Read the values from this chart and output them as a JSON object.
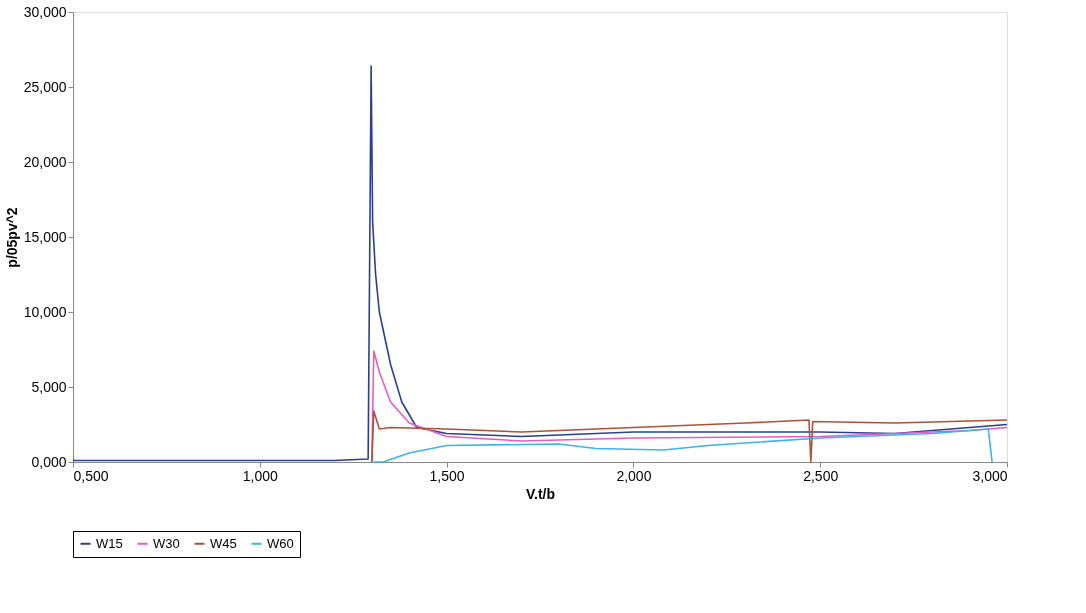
{
  "chart_data": {
    "type": "line",
    "xlabel": "V.t/b",
    "ylabel": "p/05pv^2",
    "xlim": [
      0.5,
      3.0
    ],
    "ylim": [
      0,
      30
    ],
    "xticks": [
      {
        "value": 0.5,
        "label": "0,500"
      },
      {
        "value": 1.0,
        "label": "1,000"
      },
      {
        "value": 1.5,
        "label": "1,500"
      },
      {
        "value": 2.0,
        "label": "2,000"
      },
      {
        "value": 2.5,
        "label": "2,500"
      },
      {
        "value": 3.0,
        "label": "3,000"
      }
    ],
    "yticks": [
      {
        "value": 0,
        "label": "0,000"
      },
      {
        "value": 5,
        "label": "5,000"
      },
      {
        "value": 10,
        "label": "10,000"
      },
      {
        "value": 15,
        "label": "15,000"
      },
      {
        "value": 20,
        "label": "20,000"
      },
      {
        "value": 25,
        "label": "25,000"
      },
      {
        "value": 30,
        "label": "30,000"
      }
    ],
    "grid": false,
    "legend": "bottom",
    "marker": "none",
    "line_style": "solid",
    "series": [
      {
        "name": "W15",
        "color": "#2a3f8f",
        "x": [
          0.5,
          0.8,
          1.0,
          1.2,
          1.29,
          1.298,
          1.302,
          1.31,
          1.32,
          1.35,
          1.38,
          1.42,
          1.5,
          1.7,
          2.0,
          2.3,
          2.5,
          2.7,
          2.9,
          3.0
        ],
        "values": [
          0.1,
          0.1,
          0.1,
          0.1,
          0.2,
          26.4,
          16,
          12.5,
          10,
          6.5,
          4,
          2.3,
          1.9,
          1.7,
          2.0,
          2.0,
          2.0,
          1.9,
          2.3,
          2.5
        ]
      },
      {
        "name": "W30",
        "color": "#e05fc0",
        "x": [
          1.3,
          1.305,
          1.32,
          1.35,
          1.4,
          1.5,
          1.7,
          2.0,
          2.5,
          2.9,
          3.0
        ],
        "values": [
          0,
          7.4,
          6,
          4,
          2.6,
          1.7,
          1.4,
          1.6,
          1.7,
          2.1,
          2.3
        ]
      },
      {
        "name": "W45",
        "color": "#b0503a",
        "x": [
          1.3,
          1.305,
          1.32,
          1.35,
          1.5,
          1.7,
          2.0,
          2.3,
          2.47,
          2.475,
          2.48,
          2.7,
          3.0
        ],
        "values": [
          0,
          3.4,
          2.2,
          2.3,
          2.2,
          2.0,
          2.3,
          2.6,
          2.8,
          0,
          2.7,
          2.6,
          2.8
        ]
      },
      {
        "name": "W60",
        "color": "#3cb4e8",
        "x": [
          1.3,
          1.33,
          1.4,
          1.5,
          1.8,
          1.9,
          2.08,
          2.2,
          2.5,
          2.8,
          2.95,
          2.96
        ],
        "values": [
          0,
          0,
          0.6,
          1.1,
          1.2,
          0.9,
          0.8,
          1.1,
          1.6,
          1.9,
          2.2,
          0
        ]
      }
    ]
  }
}
